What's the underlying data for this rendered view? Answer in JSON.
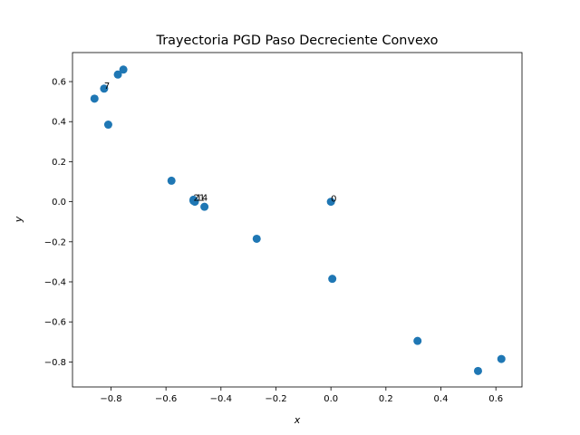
{
  "chart_data": {
    "type": "scatter",
    "title": "Trayectoria PGD Paso Decreciente Convexo",
    "xlabel": "x",
    "ylabel": "y",
    "xlim": [
      -0.94,
      0.695
    ],
    "ylim": [
      -0.925,
      0.745
    ],
    "xticks": [
      -0.8,
      -0.6,
      -0.4,
      -0.2,
      0.0,
      0.2,
      0.4,
      0.6
    ],
    "yticks": [
      -0.8,
      -0.6,
      -0.4,
      -0.2,
      0.0,
      0.2,
      0.4,
      0.6
    ],
    "xtick_labels": [
      "−0.8",
      "−0.6",
      "−0.4",
      "−0.2",
      "0.0",
      "0.2",
      "0.4",
      "0.6"
    ],
    "ytick_labels": [
      "−0.8",
      "−0.6",
      "−0.4",
      "−0.2",
      "0.0",
      "0.2",
      "0.4",
      "0.6"
    ],
    "grid": false,
    "marker_color": "#1f77b4",
    "points": [
      {
        "x": 0.0,
        "y": 0.0
      },
      {
        "x": 0.005,
        "y": -0.385
      },
      {
        "x": 0.315,
        "y": -0.695
      },
      {
        "x": 0.535,
        "y": -0.845
      },
      {
        "x": 0.62,
        "y": -0.785
      },
      {
        "x": -0.27,
        "y": -0.185
      },
      {
        "x": -0.81,
        "y": 0.385
      },
      {
        "x": -0.825,
        "y": 0.565
      },
      {
        "x": -0.86,
        "y": 0.515
      },
      {
        "x": -0.775,
        "y": 0.635
      },
      {
        "x": -0.755,
        "y": 0.66
      },
      {
        "x": -0.58,
        "y": 0.105
      },
      {
        "x": -0.46,
        "y": -0.025
      },
      {
        "x": -0.5,
        "y": 0.01
      },
      {
        "x": -0.495,
        "y": 0.0
      },
      {
        "x": -0.5,
        "y": 0.005
      }
    ],
    "annotations": [
      {
        "text": "0",
        "x": 0.0,
        "y": 0.0
      },
      {
        "text": "7",
        "x": -0.825,
        "y": 0.565
      },
      {
        "text": "21",
        "x": -0.5,
        "y": 0.005
      },
      {
        "text": "14",
        "x": -0.49,
        "y": 0.005
      }
    ]
  }
}
